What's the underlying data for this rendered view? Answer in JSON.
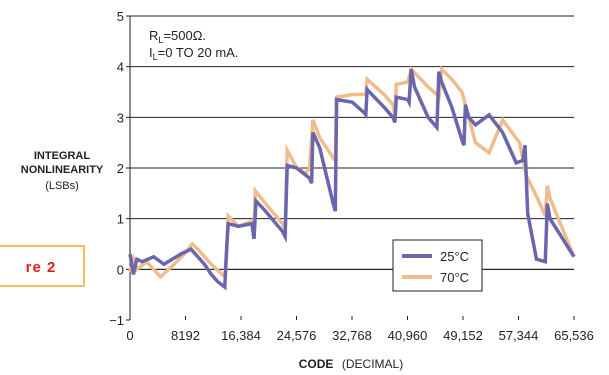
{
  "figure_tag": "re 2",
  "chart_data": {
    "type": "line",
    "xlabel_bold": "CODE",
    "xlabel_rest": "(DECIMAL)",
    "ylabel_lines": [
      "INTEGRAL",
      "NONLINEARITY"
    ],
    "ylabel_unit": "(LSBs)",
    "xlim": [
      0,
      65536
    ],
    "ylim": [
      -1,
      5
    ],
    "x_ticks": [
      0,
      8192,
      16384,
      24576,
      32768,
      40960,
      49152,
      57344,
      65536
    ],
    "x_tick_labels": [
      "0",
      "8192",
      "16,384",
      "24,576",
      "32,768",
      "40,960",
      "49,152",
      "57,344",
      "65,536"
    ],
    "y_ticks": [
      -1,
      0,
      1,
      2,
      3,
      4,
      5
    ],
    "y_tick_labels": [
      "−1",
      "0",
      "1",
      "2",
      "3",
      "4",
      "5"
    ],
    "grid": "horizontal",
    "annotation": {
      "line1_main": "R",
      "line1_sub": "L",
      "line1_rest": "=500Ω.",
      "line2_main": "I",
      "line2_sub": "L",
      "line2_rest": "=0 TO 20 mA."
    },
    "legend_position": "bottom-right",
    "series": [
      {
        "name": "25°C",
        "color": "#6a66ae",
        "x": [
          0,
          500,
          1000,
          1800,
          3500,
          5000,
          7500,
          9000,
          10000,
          11000,
          12000,
          13000,
          14000,
          14300,
          14500,
          16000,
          18000,
          18300,
          18600,
          20000,
          22500,
          22900,
          23200,
          24600,
          26500,
          26800,
          27000,
          28000,
          30000,
          30300,
          30500,
          32800,
          34500,
          34800,
          35000,
          37500,
          38800,
          39100,
          39300,
          41000,
          41200,
          41500,
          42000,
          43000,
          44000,
          45300,
          45600,
          46000,
          47500,
          49000,
          49300,
          49500,
          50000,
          51000,
          53000,
          55000,
          57000,
          58000,
          58300,
          58700,
          60000,
          61300,
          61600,
          62000,
          65536
        ],
        "y": [
          0.3,
          -0.1,
          0.2,
          0.15,
          0.25,
          0.1,
          0.3,
          0.4,
          0.25,
          0.1,
          -0.1,
          -0.25,
          -0.35,
          0.5,
          0.9,
          0.85,
          0.9,
          0.6,
          1.35,
          1.15,
          0.75,
          0.65,
          2.05,
          2.0,
          1.8,
          1.7,
          2.7,
          2.4,
          1.3,
          1.15,
          3.35,
          3.3,
          3.1,
          3.05,
          3.55,
          3.2,
          3.0,
          2.9,
          3.4,
          3.35,
          3.3,
          3.95,
          3.6,
          3.3,
          3.0,
          2.8,
          3.9,
          3.7,
          3.2,
          2.55,
          2.45,
          3.25,
          3.0,
          2.85,
          3.05,
          2.7,
          2.1,
          2.15,
          2.45,
          1.1,
          0.2,
          0.15,
          1.3,
          1.0,
          0.25
        ]
      },
      {
        "name": "70°C",
        "color": "#efbc8a",
        "x": [
          0,
          500,
          1000,
          2500,
          4500,
          6500,
          8000,
          9200,
          10000,
          12000,
          14000,
          14300,
          14500,
          16000,
          18000,
          18300,
          18500,
          20000,
          22500,
          22900,
          23200,
          24600,
          26000,
          26500,
          27000,
          28000,
          30000,
          30300,
          30500,
          32800,
          34500,
          34800,
          35000,
          37500,
          38800,
          39100,
          39300,
          41000,
          41500,
          44000,
          45300,
          45600,
          46000,
          47500,
          49000,
          51000,
          53000,
          55000,
          57500,
          58500,
          60500,
          61300,
          61600,
          62000,
          65536
        ],
        "y": [
          -0.05,
          0.2,
          0.0,
          0.15,
          -0.15,
          0.1,
          0.3,
          0.5,
          0.4,
          0.1,
          -0.15,
          0.45,
          1.05,
          0.85,
          0.95,
          0.85,
          1.55,
          1.3,
          0.9,
          0.8,
          2.35,
          2.0,
          1.9,
          2.0,
          2.95,
          2.6,
          2.2,
          2.15,
          3.4,
          3.45,
          3.45,
          3.45,
          3.75,
          3.45,
          3.25,
          3.05,
          3.65,
          3.7,
          3.95,
          3.6,
          3.45,
          3.4,
          3.95,
          3.75,
          3.5,
          2.5,
          2.3,
          2.95,
          2.5,
          1.85,
          1.3,
          1.05,
          1.65,
          1.4,
          0.25
        ]
      }
    ]
  }
}
